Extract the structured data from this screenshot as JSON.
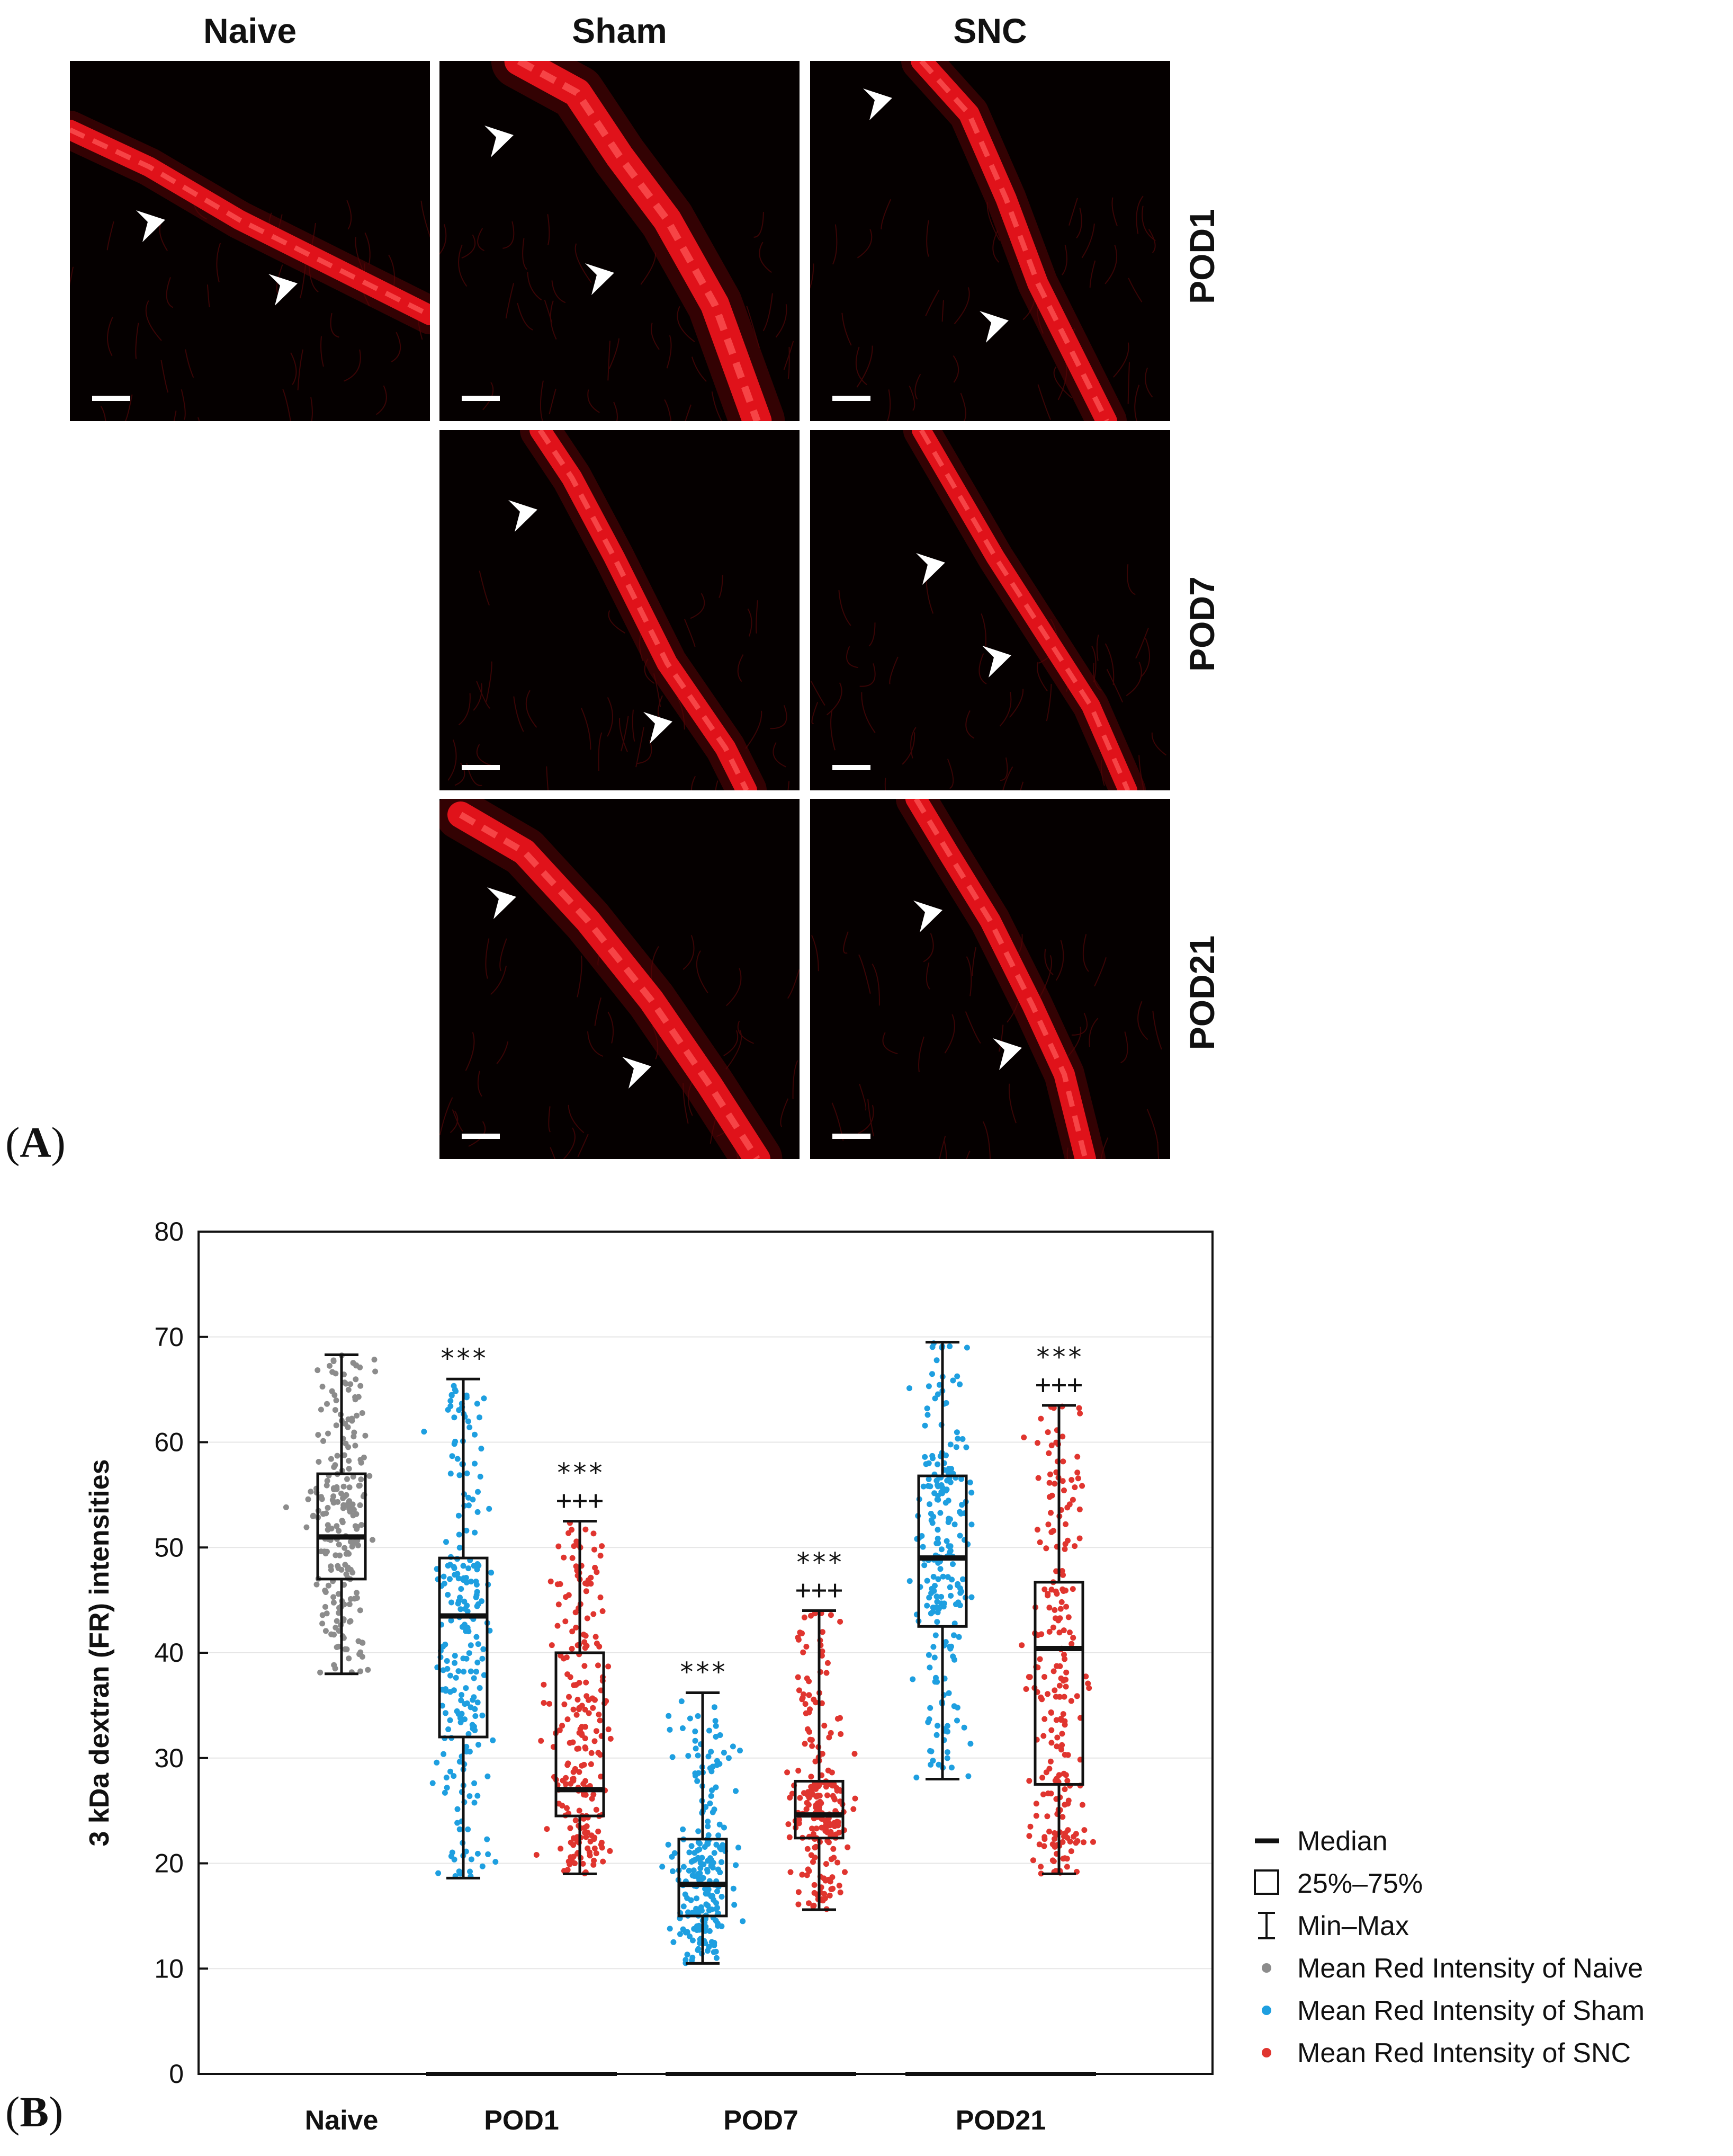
{
  "panel_a": {
    "letter_open": "(",
    "letter": "A",
    "letter_close": ")",
    "columns": [
      "Naive",
      "Sham",
      "SNC"
    ],
    "rows": [
      "POD1",
      "POD7",
      "POD21"
    ],
    "stain_color": "#e0121a",
    "arrowhead_color": "#ffffff"
  },
  "panel_b": {
    "letter_open": "(",
    "letter": "B",
    "letter_close": ")"
  },
  "chart_data": {
    "type": "box",
    "ylabel": "3 kDa dextran (FR) intensities",
    "xlabel": "",
    "ylim": [
      0,
      80
    ],
    "yticks": [
      0,
      10,
      20,
      30,
      40,
      50,
      60,
      70,
      80
    ],
    "categories": [
      "Naive",
      "POD1",
      "POD7",
      "POD21"
    ],
    "grid": true,
    "legend_position": "right",
    "colors": {
      "Naive": "#8c8c8c",
      "Sham": "#1e9fe0",
      "SNC": "#e0352f"
    },
    "boxes": [
      {
        "category": "Naive",
        "group": "Naive",
        "min": 38,
        "q1": 47,
        "median": 51,
        "q3": 57,
        "max": 68.3,
        "annotation": []
      },
      {
        "category": "POD1",
        "group": "Sham",
        "min": 18.6,
        "q1": 32,
        "median": 43.5,
        "q3": 49,
        "max": 66,
        "annotation": [
          "***"
        ]
      },
      {
        "category": "POD1",
        "group": "SNC",
        "min": 19,
        "q1": 24.5,
        "median": 27,
        "q3": 40,
        "max": 52.5,
        "annotation": [
          "***",
          "+++"
        ]
      },
      {
        "category": "POD7",
        "group": "Sham",
        "min": 10.5,
        "q1": 15,
        "median": 18,
        "q3": 22.3,
        "max": 36.2,
        "annotation": [
          "***"
        ]
      },
      {
        "category": "POD7",
        "group": "SNC",
        "min": 15.6,
        "q1": 22.4,
        "median": 24.6,
        "q3": 27.8,
        "max": 44,
        "annotation": [
          "***",
          "+++"
        ]
      },
      {
        "category": "POD21",
        "group": "Sham",
        "min": 28,
        "q1": 42.5,
        "median": 49,
        "q3": 56.8,
        "max": 69.5,
        "annotation": []
      },
      {
        "category": "POD21",
        "group": "SNC",
        "min": 19,
        "q1": 27.5,
        "median": 40.4,
        "q3": 46.7,
        "max": 63.5,
        "annotation": [
          "***",
          "+++"
        ]
      }
    ],
    "legend": [
      "Median",
      "25%–75%",
      "Min–Max",
      "Mean Red Intensity of Naive",
      "Mean Red Intensity of Sham",
      "Mean Red Intensity of SNC"
    ]
  }
}
